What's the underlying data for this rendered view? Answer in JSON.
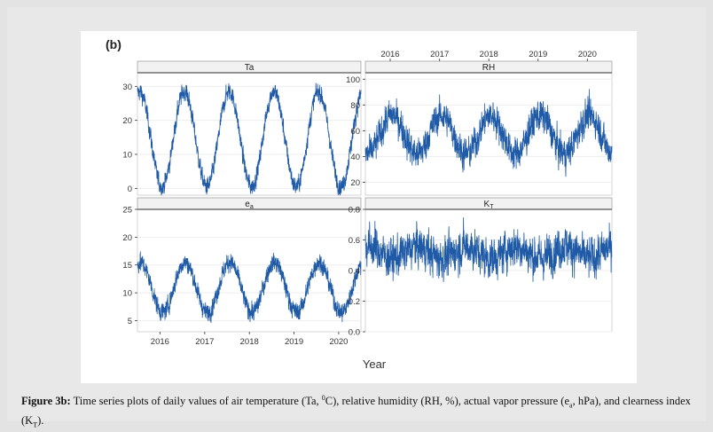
{
  "panel_letter": "(b)",
  "xlabel": "Year",
  "caption": {
    "label": "Figure 3b:",
    "p1": " Time series plots of daily values of air temperature (Ta, ",
    "sup0": "0",
    "p2": "C), relative humidity (RH, %), actual vapor pressure (e",
    "sub_a": "a",
    "p3": ", hPa), and clearness index (K",
    "sub_t": "T",
    "p4": ")."
  },
  "colors": {
    "line": "#1f5aa6",
    "strip": "#f2f2f2",
    "axis": "#333333",
    "grid": "#eeeeee"
  },
  "chart_data": [
    {
      "type": "line",
      "title": "Ta",
      "title_sub": "",
      "x": [
        "2015-07-01",
        "2020-07-01"
      ],
      "xticks": [
        "2016",
        "2017",
        "2018",
        "2019",
        "2020"
      ],
      "ylim": [
        -2,
        34
      ],
      "yticks": [
        0,
        10,
        20,
        30
      ],
      "series": [
        {
          "mean": 14.5,
          "amplitude": 14,
          "noise": 3.5,
          "peak_doy": 200
        }
      ]
    },
    {
      "type": "line",
      "title": "RH",
      "title_sub": "",
      "x": [
        "2015-07-01",
        "2020-07-01"
      ],
      "xticks": [
        "2016",
        "2017",
        "2018",
        "2019",
        "2020"
      ],
      "ylim": [
        10,
        105
      ],
      "yticks": [
        20,
        40,
        60,
        80,
        100
      ],
      "series": [
        {
          "mean": 57,
          "amplitude": 15,
          "noise": 17,
          "peak_doy": 15
        }
      ]
    },
    {
      "type": "line",
      "title": "e",
      "title_sub": "a",
      "x": [
        "2015-07-01",
        "2020-07-01"
      ],
      "xticks": [
        "2016",
        "2017",
        "2018",
        "2019",
        "2020"
      ],
      "ylim": [
        3,
        25
      ],
      "yticks": [
        5,
        10,
        15,
        20,
        25
      ],
      "series": [
        {
          "mean": 11,
          "amplitude": 4.5,
          "noise": 2.2,
          "peak_doy": 205
        }
      ]
    },
    {
      "type": "line",
      "title": "K",
      "title_sub": "T",
      "x": [
        "2015-07-01",
        "2020-07-01"
      ],
      "xticks": [
        "2016",
        "2017",
        "2018",
        "2019",
        "2020"
      ],
      "ylim": [
        0,
        0.8
      ],
      "yticks": [
        0.0,
        0.2,
        0.4,
        0.6,
        0.8
      ],
      "series": [
        {
          "mean": 0.52,
          "amplitude": 0.04,
          "noise": 0.18,
          "peak_doy": 200
        }
      ]
    }
  ]
}
